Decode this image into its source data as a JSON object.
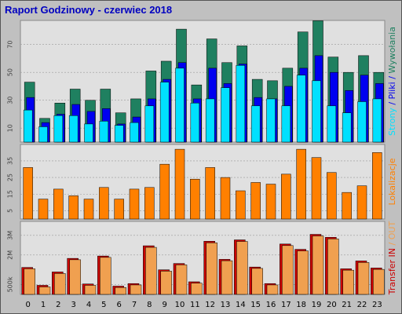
{
  "title": "Raport Godzinowy -  czerwiec 2018",
  "colors": {
    "title": "#0000c0",
    "background": "#c0c0c0",
    "panel": "#e0e0e0",
    "grid": "#9a9a9a",
    "hits": "#1f8060",
    "files": "#0000f0",
    "pages": "#00e0ff",
    "visits": "#ff8000",
    "kbytes_in": "#cc0000",
    "kbytes_out": "#f0a050"
  },
  "chart_data": [
    {
      "type": "bar",
      "panel": "top",
      "categories": [
        "0",
        "1",
        "2",
        "3",
        "4",
        "5",
        "6",
        "7",
        "8",
        "9",
        "10",
        "11",
        "12",
        "13",
        "14",
        "15",
        "16",
        "17",
        "18",
        "19",
        "20",
        "21",
        "22",
        "23"
      ],
      "side_label_parts": [
        {
          "text": "Strony",
          "color_key": "pages"
        },
        {
          "text": " / ",
          "color_key": "files"
        },
        {
          "text": "Pliki",
          "color_key": "files"
        },
        {
          "text": " / ",
          "color_key": "files"
        },
        {
          "text": "Wywołania",
          "color_key": "hits"
        }
      ],
      "yticks": [
        "10",
        "30",
        "50",
        "70"
      ],
      "ylim": [
        0,
        85
      ],
      "series": [
        {
          "name": "Wywołania",
          "color_key": "hits",
          "values": [
            43,
            17,
            28,
            38,
            30,
            38,
            21,
            31,
            51,
            58,
            81,
            41,
            74,
            57,
            69,
            45,
            44,
            53,
            79,
            87,
            61,
            50,
            62,
            50
          ]
        },
        {
          "name": "Pliki",
          "color_key": "files",
          "values": [
            32,
            14,
            20,
            27,
            22,
            24,
            13,
            18,
            31,
            45,
            57,
            31,
            53,
            42,
            56,
            32,
            31,
            40,
            53,
            62,
            50,
            37,
            48,
            42
          ]
        },
        {
          "name": "Strony",
          "color_key": "pages",
          "values": [
            23,
            11,
            19,
            19,
            13,
            15,
            12,
            14,
            26,
            43,
            53,
            28,
            31,
            39,
            55,
            26,
            31,
            26,
            48,
            44,
            26,
            21,
            29,
            31
          ]
        }
      ]
    },
    {
      "type": "bar",
      "panel": "middle",
      "categories": [
        "0",
        "1",
        "2",
        "3",
        "4",
        "5",
        "6",
        "7",
        "8",
        "9",
        "10",
        "11",
        "12",
        "13",
        "14",
        "15",
        "16",
        "17",
        "18",
        "19",
        "20",
        "21",
        "22",
        "23"
      ],
      "side_label_parts": [
        {
          "text": "Lokalizacje",
          "color_key": "visits"
        }
      ],
      "yticks": [
        "5",
        "15",
        "25",
        "35"
      ],
      "ylim": [
        0,
        43
      ],
      "series": [
        {
          "name": "Lokalizacje",
          "color_key": "visits",
          "values": [
            31,
            12,
            18,
            14,
            12,
            19,
            12,
            18,
            19,
            33,
            42,
            24,
            31,
            25,
            17,
            22,
            21,
            27,
            42,
            37,
            28,
            16,
            20,
            40
          ]
        }
      ]
    },
    {
      "type": "bar",
      "panel": "bottom",
      "categories": [
        "0",
        "1",
        "2",
        "3",
        "4",
        "5",
        "6",
        "7",
        "8",
        "9",
        "10",
        "11",
        "12",
        "13",
        "14",
        "15",
        "16",
        "17",
        "18",
        "19",
        "20",
        "21",
        "22",
        "23"
      ],
      "side_label_parts": [
        {
          "text": "Transfer",
          "color_key": "kbytes_in"
        },
        {
          "text": " ",
          "color_key": "kbytes_in"
        },
        {
          "text": "IN",
          "color_key": "kbytes_in"
        },
        {
          "text": " / ",
          "color_key": "kbytes_out"
        },
        {
          "text": "OUT",
          "color_key": "kbytes_out"
        }
      ],
      "yticks": [
        "500k",
        "2M",
        "3M"
      ],
      "ytick_values": [
        500,
        2000,
        3000
      ],
      "ylim": [
        0,
        3550
      ],
      "series": [
        {
          "name": "IN",
          "color_key": "kbytes_in",
          "values": [
            1370,
            460,
            1140,
            1830,
            530,
            1950,
            420,
            550,
            2470,
            1250,
            1570,
            640,
            2700,
            1780,
            2770,
            1390,
            550,
            2560,
            2290,
            3050,
            2900,
            1300,
            1700,
            1340
          ]
        },
        {
          "name": "OUT",
          "color_key": "kbytes_out",
          "values": [
            1360,
            440,
            1120,
            1820,
            520,
            1940,
            410,
            540,
            2450,
            1240,
            1560,
            630,
            2680,
            1770,
            2750,
            1380,
            540,
            2540,
            2270,
            3030,
            2880,
            1290,
            1680,
            1330
          ]
        }
      ]
    }
  ]
}
